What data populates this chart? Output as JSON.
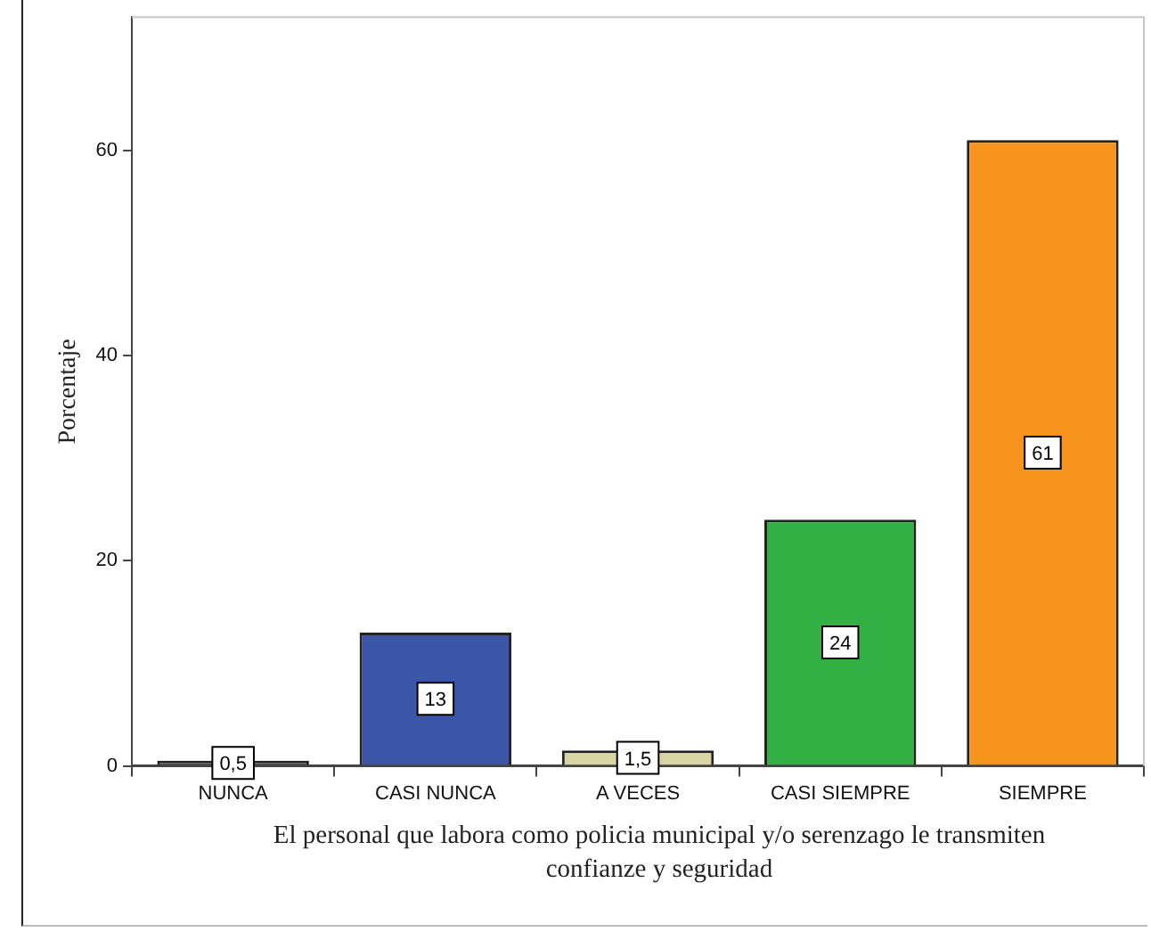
{
  "chart_data": {
    "type": "bar",
    "categories": [
      "NUNCA",
      "CASI NUNCA",
      "A VECES",
      "CASI SIEMPRE",
      "SIEMPRE"
    ],
    "values": [
      0.5,
      13,
      1.5,
      24,
      61
    ],
    "value_labels": [
      "0,5",
      "13",
      "1,5",
      "24",
      "61"
    ],
    "colors": [
      "#505050",
      "#3b55a8",
      "#d8d5a2",
      "#33b044",
      "#f7941d"
    ],
    "ylabel": "Porcentaje",
    "xlabel": "El personal que labora como policia municipal y/o serenzago le transmiten confianze y seguridad",
    "ylim": [
      0,
      73
    ],
    "yticks": [
      0,
      20,
      40,
      60
    ],
    "grid": false,
    "legend": false
  }
}
